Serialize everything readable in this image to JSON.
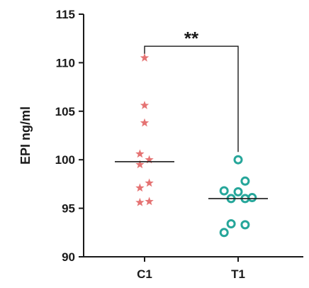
{
  "chart_data": {
    "type": "scatter",
    "title": "",
    "xlabel": "",
    "ylabel": "EPI ng/ml",
    "ylim": [
      90,
      115
    ],
    "yticks": [
      90,
      95,
      100,
      105,
      110,
      115
    ],
    "categories": [
      "C1",
      "T1"
    ],
    "grid": false,
    "significance": {
      "label": "**",
      "between": [
        "C1",
        "T1"
      ]
    },
    "series": [
      {
        "name": "C1",
        "marker": "star",
        "color": "#e57373",
        "median": 99.8,
        "points": [
          {
            "offset": 0.0,
            "y": 110.5
          },
          {
            "offset": 0.0,
            "y": 105.6
          },
          {
            "offset": 0.0,
            "y": 103.8
          },
          {
            "offset": -0.1,
            "y": 100.6
          },
          {
            "offset": 0.1,
            "y": 100.0
          },
          {
            "offset": -0.1,
            "y": 99.5
          },
          {
            "offset": -0.1,
            "y": 97.1
          },
          {
            "offset": 0.1,
            "y": 97.6
          },
          {
            "offset": -0.1,
            "y": 95.6
          },
          {
            "offset": 0.1,
            "y": 95.7
          }
        ]
      },
      {
        "name": "T1",
        "marker": "circle",
        "color": "#26a69a",
        "median": 96.0,
        "points": [
          {
            "offset": 0.0,
            "y": 100.0
          },
          {
            "offset": 0.15,
            "y": 97.8
          },
          {
            "offset": -0.3,
            "y": 96.8
          },
          {
            "offset": 0.0,
            "y": 96.7
          },
          {
            "offset": -0.15,
            "y": 96.0
          },
          {
            "offset": 0.15,
            "y": 96.0
          },
          {
            "offset": 0.3,
            "y": 96.1
          },
          {
            "offset": -0.15,
            "y": 93.4
          },
          {
            "offset": 0.15,
            "y": 93.3
          },
          {
            "offset": -0.3,
            "y": 92.5
          }
        ]
      }
    ]
  }
}
